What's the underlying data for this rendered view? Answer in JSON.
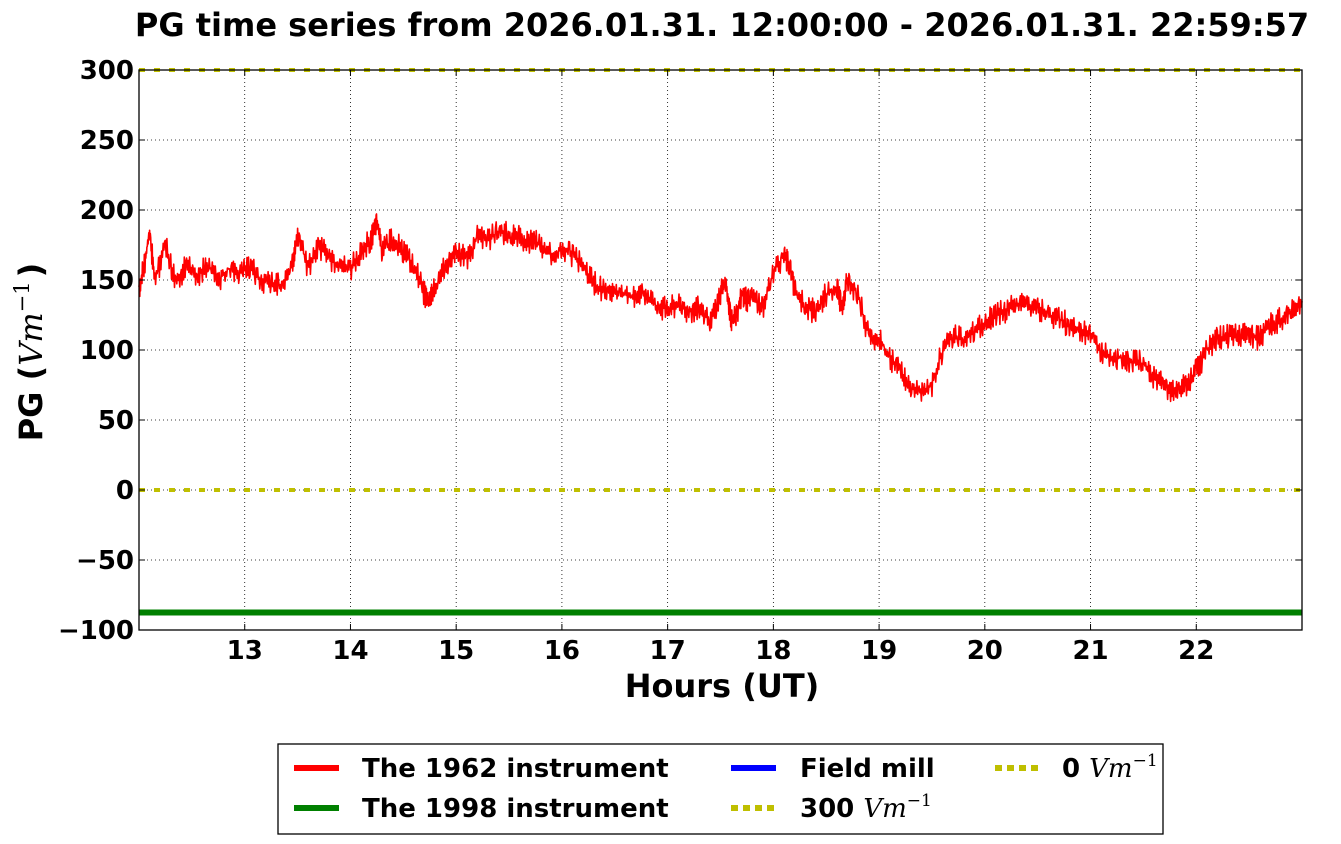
{
  "chart_data": {
    "type": "line",
    "title": "PG time series from 2026.01.31. 12:00:00 - 2026.01.31. 22:59:57",
    "xlabel": "Hours (UT)",
    "ylabel": "PG (",
    "ylabel_math": "Vm",
    "ylabel_exp": "−1",
    "ylabel_close": ")",
    "xlim": [
      12.0,
      23.0
    ],
    "ylim": [
      -100,
      300
    ],
    "xticks": [
      13,
      14,
      15,
      16,
      17,
      18,
      19,
      20,
      21,
      22
    ],
    "xtick_labels": [
      "13",
      "14",
      "15",
      "16",
      "17",
      "18",
      "19",
      "20",
      "21",
      "22"
    ],
    "yticks": [
      -100,
      -50,
      0,
      50,
      100,
      150,
      200,
      250,
      300
    ],
    "ytick_labels": [
      "−100",
      "−50",
      "0",
      "50",
      "100",
      "150",
      "200",
      "250",
      "300"
    ],
    "grid": true,
    "legend_position": "bottom-center-outside",
    "series": [
      {
        "name": "The 1962 instrument",
        "color": "#ff0000",
        "style": "solid",
        "x": [
          12.0,
          12.05,
          12.1,
          12.15,
          12.25,
          12.35,
          12.45,
          12.55,
          12.65,
          12.75,
          12.85,
          12.95,
          13.05,
          13.15,
          13.25,
          13.35,
          13.45,
          13.5,
          13.6,
          13.7,
          13.8,
          13.9,
          14.0,
          14.1,
          14.2,
          14.25,
          14.3,
          14.4,
          14.5,
          14.6,
          14.7,
          14.75,
          14.8,
          14.9,
          15.0,
          15.1,
          15.2,
          15.3,
          15.4,
          15.5,
          15.6,
          15.7,
          15.8,
          15.9,
          16.0,
          16.1,
          16.2,
          16.3,
          16.4,
          16.5,
          16.6,
          16.7,
          16.8,
          16.9,
          17.0,
          17.1,
          17.2,
          17.3,
          17.4,
          17.5,
          17.55,
          17.6,
          17.65,
          17.7,
          17.75,
          17.8,
          17.9,
          18.0,
          18.1,
          18.15,
          18.2,
          18.3,
          18.4,
          18.5,
          18.6,
          18.65,
          18.7,
          18.8,
          18.9,
          19.0,
          19.1,
          19.2,
          19.3,
          19.4,
          19.5,
          19.6,
          19.7,
          19.8,
          19.9,
          20.0,
          20.1,
          20.2,
          20.3,
          20.4,
          20.5,
          20.6,
          20.7,
          20.8,
          20.9,
          21.0,
          21.1,
          21.2,
          21.3,
          21.4,
          21.5,
          21.6,
          21.7,
          21.8,
          21.9,
          22.0,
          22.1,
          22.2,
          22.3,
          22.4,
          22.5,
          22.6,
          22.7,
          22.8,
          22.9,
          23.0
        ],
        "values": [
          145,
          160,
          185,
          150,
          175,
          148,
          160,
          152,
          162,
          150,
          158,
          155,
          160,
          150,
          148,
          145,
          160,
          183,
          158,
          175,
          165,
          160,
          158,
          170,
          180,
          192,
          170,
          180,
          170,
          160,
          140,
          135,
          145,
          160,
          170,
          165,
          180,
          178,
          185,
          182,
          180,
          178,
          175,
          168,
          172,
          168,
          160,
          148,
          142,
          140,
          140,
          138,
          140,
          130,
          130,
          132,
          128,
          130,
          120,
          140,
          148,
          120,
          125,
          140,
          135,
          138,
          130,
          155,
          168,
          160,
          145,
          130,
          128,
          140,
          145,
          130,
          150,
          140,
          110,
          108,
          95,
          85,
          75,
          70,
          75,
          100,
          110,
          108,
          112,
          120,
          125,
          128,
          132,
          132,
          130,
          125,
          122,
          118,
          115,
          110,
          100,
          95,
          95,
          92,
          90,
          80,
          75,
          68,
          75,
          85,
          100,
          108,
          110,
          112,
          110,
          108,
          118,
          122,
          128,
          135
        ]
      },
      {
        "name": "The 1998 instrument",
        "color": "#008000",
        "style": "solid",
        "x": [
          12.0,
          23.0
        ],
        "values": [
          -87.5,
          -87.5
        ]
      },
      {
        "name": "Field mill",
        "color": "#0000ff",
        "style": "solid",
        "x": [],
        "values": []
      },
      {
        "name": "300",
        "name_math": "Vm",
        "name_exp": "−1",
        "color": "#bfbf00",
        "style": "dotted",
        "x": [
          12.0,
          23.0
        ],
        "values": [
          300,
          300
        ]
      },
      {
        "name": "0",
        "name_math": "Vm",
        "name_exp": "−1",
        "color": "#bfbf00",
        "style": "dotted",
        "x": [
          12.0,
          23.0
        ],
        "values": [
          0,
          0
        ]
      }
    ]
  }
}
